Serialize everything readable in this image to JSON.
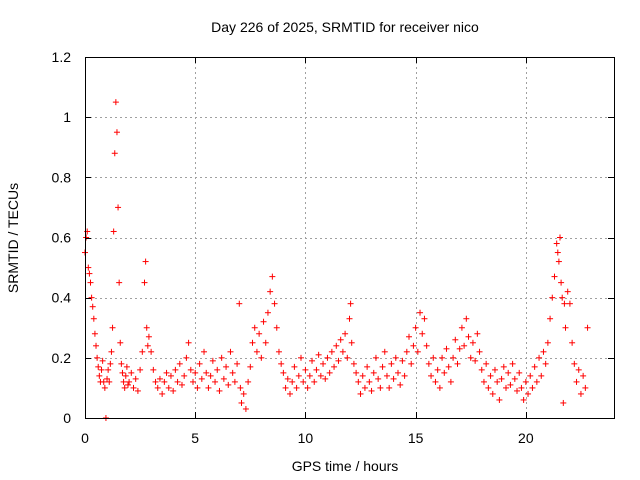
{
  "chart_data": {
    "type": "scatter",
    "title": "Day 226 of 2025, SRMTID for receiver nico",
    "xlabel": "GPS time / hours",
    "ylabel": "SRMTID / TECUs",
    "xlim": [
      0,
      24
    ],
    "ylim": [
      0,
      1.2
    ],
    "x_ticks": [
      {
        "value": 0,
        "label": "0"
      },
      {
        "value": 5,
        "label": "5"
      },
      {
        "value": 10,
        "label": "10"
      },
      {
        "value": 15,
        "label": "15"
      },
      {
        "value": 20,
        "label": "20"
      }
    ],
    "y_ticks": [
      {
        "value": 0,
        "label": "0"
      },
      {
        "value": 0.2,
        "label": "0.2"
      },
      {
        "value": 0.4,
        "label": "0.4"
      },
      {
        "value": 0.6,
        "label": "0.6"
      },
      {
        "value": 0.8,
        "label": "0.8"
      },
      {
        "value": 1.0,
        "label": "1"
      },
      {
        "value": 1.2,
        "label": "1.2"
      }
    ],
    "grid": true,
    "marker": "+",
    "marker_color": "#ff0000",
    "series": [
      {
        "name": "SRMTID",
        "points": [
          [
            0.0,
            0.55
          ],
          [
            0.05,
            0.6
          ],
          [
            0.1,
            0.62
          ],
          [
            0.15,
            0.5
          ],
          [
            0.2,
            0.48
          ],
          [
            0.25,
            0.45
          ],
          [
            0.3,
            0.4
          ],
          [
            0.35,
            0.37
          ],
          [
            0.4,
            0.33
          ],
          [
            0.45,
            0.28
          ],
          [
            0.5,
            0.24
          ],
          [
            0.55,
            0.2
          ],
          [
            0.6,
            0.17
          ],
          [
            0.65,
            0.14
          ],
          [
            0.7,
            0.12
          ],
          [
            0.75,
            0.16
          ],
          [
            0.8,
            0.19
          ],
          [
            0.85,
            0.12
          ],
          [
            0.9,
            0.1
          ],
          [
            0.95,
            0.0
          ],
          [
            1.0,
            0.13
          ],
          [
            1.05,
            0.16
          ],
          [
            1.1,
            0.12
          ],
          [
            1.15,
            0.18
          ],
          [
            1.2,
            0.22
          ],
          [
            1.25,
            0.3
          ],
          [
            1.3,
            0.62
          ],
          [
            1.35,
            0.88
          ],
          [
            1.4,
            1.05
          ],
          [
            1.45,
            0.95
          ],
          [
            1.5,
            0.7
          ],
          [
            1.55,
            0.45
          ],
          [
            1.6,
            0.25
          ],
          [
            1.65,
            0.18
          ],
          [
            1.7,
            0.15
          ],
          [
            1.75,
            0.12
          ],
          [
            1.8,
            0.1
          ],
          [
            1.85,
            0.14
          ],
          [
            1.9,
            0.17
          ],
          [
            1.95,
            0.11
          ],
          [
            2.0,
            0.12
          ],
          [
            2.1,
            0.15
          ],
          [
            2.2,
            0.1
          ],
          [
            2.3,
            0.13
          ],
          [
            2.4,
            0.09
          ],
          [
            2.5,
            0.16
          ],
          [
            2.6,
            0.22
          ],
          [
            2.7,
            0.45
          ],
          [
            2.75,
            0.52
          ],
          [
            2.8,
            0.3
          ],
          [
            2.85,
            0.24
          ],
          [
            2.9,
            0.27
          ],
          [
            3.0,
            0.22
          ],
          [
            3.1,
            0.16
          ],
          [
            3.2,
            0.12
          ],
          [
            3.3,
            0.1
          ],
          [
            3.4,
            0.13
          ],
          [
            3.5,
            0.08
          ],
          [
            3.6,
            0.12
          ],
          [
            3.7,
            0.15
          ],
          [
            3.8,
            0.1
          ],
          [
            3.9,
            0.14
          ],
          [
            4.0,
            0.09
          ],
          [
            4.1,
            0.16
          ],
          [
            4.2,
            0.12
          ],
          [
            4.3,
            0.18
          ],
          [
            4.4,
            0.11
          ],
          [
            4.5,
            0.14
          ],
          [
            4.6,
            0.2
          ],
          [
            4.7,
            0.25
          ],
          [
            4.8,
            0.16
          ],
          [
            4.9,
            0.12
          ],
          [
            5.0,
            0.15
          ],
          [
            5.1,
            0.1
          ],
          [
            5.2,
            0.18
          ],
          [
            5.3,
            0.13
          ],
          [
            5.4,
            0.22
          ],
          [
            5.5,
            0.15
          ],
          [
            5.6,
            0.1
          ],
          [
            5.7,
            0.14
          ],
          [
            5.8,
            0.19
          ],
          [
            5.9,
            0.12
          ],
          [
            6.0,
            0.16
          ],
          [
            6.1,
            0.09
          ],
          [
            6.2,
            0.2
          ],
          [
            6.3,
            0.13
          ],
          [
            6.4,
            0.17
          ],
          [
            6.5,
            0.11
          ],
          [
            6.6,
            0.22
          ],
          [
            6.7,
            0.15
          ],
          [
            6.8,
            0.12
          ],
          [
            6.9,
            0.18
          ],
          [
            7.0,
            0.38
          ],
          [
            7.05,
            0.1
          ],
          [
            7.1,
            0.05
          ],
          [
            7.2,
            0.08
          ],
          [
            7.3,
            0.03
          ],
          [
            7.4,
            0.12
          ],
          [
            7.5,
            0.17
          ],
          [
            7.6,
            0.25
          ],
          [
            7.7,
            0.3
          ],
          [
            7.8,
            0.22
          ],
          [
            7.9,
            0.28
          ],
          [
            8.0,
            0.2
          ],
          [
            8.1,
            0.32
          ],
          [
            8.2,
            0.25
          ],
          [
            8.3,
            0.35
          ],
          [
            8.4,
            0.42
          ],
          [
            8.5,
            0.47
          ],
          [
            8.6,
            0.38
          ],
          [
            8.7,
            0.3
          ],
          [
            8.8,
            0.22
          ],
          [
            8.9,
            0.18
          ],
          [
            9.0,
            0.15
          ],
          [
            9.1,
            0.1
          ],
          [
            9.2,
            0.13
          ],
          [
            9.3,
            0.08
          ],
          [
            9.4,
            0.12
          ],
          [
            9.5,
            0.17
          ],
          [
            9.6,
            0.1
          ],
          [
            9.7,
            0.14
          ],
          [
            9.8,
            0.2
          ],
          [
            9.9,
            0.12
          ],
          [
            10.0,
            0.16
          ],
          [
            10.1,
            0.1
          ],
          [
            10.2,
            0.14
          ],
          [
            10.3,
            0.19
          ],
          [
            10.4,
            0.12
          ],
          [
            10.5,
            0.16
          ],
          [
            10.6,
            0.21
          ],
          [
            10.7,
            0.14
          ],
          [
            10.8,
            0.18
          ],
          [
            10.9,
            0.13
          ],
          [
            11.0,
            0.2
          ],
          [
            11.1,
            0.15
          ],
          [
            11.2,
            0.22
          ],
          [
            11.3,
            0.17
          ],
          [
            11.4,
            0.24
          ],
          [
            11.5,
            0.19
          ],
          [
            11.6,
            0.26
          ],
          [
            11.7,
            0.22
          ],
          [
            11.8,
            0.28
          ],
          [
            11.9,
            0.2
          ],
          [
            12.0,
            0.33
          ],
          [
            12.05,
            0.38
          ],
          [
            12.1,
            0.25
          ],
          [
            12.2,
            0.18
          ],
          [
            12.3,
            0.15
          ],
          [
            12.4,
            0.12
          ],
          [
            12.5,
            0.08
          ],
          [
            12.6,
            0.14
          ],
          [
            12.7,
            0.1
          ],
          [
            12.8,
            0.17
          ],
          [
            12.9,
            0.12
          ],
          [
            13.0,
            0.09
          ],
          [
            13.1,
            0.15
          ],
          [
            13.2,
            0.2
          ],
          [
            13.3,
            0.13
          ],
          [
            13.4,
            0.1
          ],
          [
            13.5,
            0.17
          ],
          [
            13.6,
            0.22
          ],
          [
            13.7,
            0.14
          ],
          [
            13.8,
            0.1
          ],
          [
            13.9,
            0.18
          ],
          [
            14.0,
            0.13
          ],
          [
            14.1,
            0.2
          ],
          [
            14.2,
            0.15
          ],
          [
            14.3,
            0.11
          ],
          [
            14.4,
            0.19
          ],
          [
            14.5,
            0.14
          ],
          [
            14.6,
            0.22
          ],
          [
            14.7,
            0.27
          ],
          [
            14.8,
            0.18
          ],
          [
            14.9,
            0.24
          ],
          [
            15.0,
            0.3
          ],
          [
            15.1,
            0.22
          ],
          [
            15.2,
            0.35
          ],
          [
            15.3,
            0.28
          ],
          [
            15.4,
            0.33
          ],
          [
            15.5,
            0.24
          ],
          [
            15.6,
            0.18
          ],
          [
            15.7,
            0.14
          ],
          [
            15.8,
            0.2
          ],
          [
            15.9,
            0.12
          ],
          [
            16.0,
            0.16
          ],
          [
            16.1,
            0.1
          ],
          [
            16.2,
            0.2
          ],
          [
            16.3,
            0.15
          ],
          [
            16.4,
            0.23
          ],
          [
            16.5,
            0.17
          ],
          [
            16.6,
            0.12
          ],
          [
            16.7,
            0.2
          ],
          [
            16.8,
            0.26
          ],
          [
            16.9,
            0.18
          ],
          [
            17.0,
            0.23
          ],
          [
            17.1,
            0.3
          ],
          [
            17.2,
            0.24
          ],
          [
            17.3,
            0.33
          ],
          [
            17.4,
            0.27
          ],
          [
            17.5,
            0.2
          ],
          [
            17.6,
            0.25
          ],
          [
            17.7,
            0.19
          ],
          [
            17.8,
            0.28
          ],
          [
            17.9,
            0.22
          ],
          [
            18.0,
            0.16
          ],
          [
            18.1,
            0.12
          ],
          [
            18.2,
            0.18
          ],
          [
            18.3,
            0.1
          ],
          [
            18.4,
            0.14
          ],
          [
            18.5,
            0.08
          ],
          [
            18.6,
            0.16
          ],
          [
            18.7,
            0.12
          ],
          [
            18.8,
            0.06
          ],
          [
            18.9,
            0.13
          ],
          [
            19.0,
            0.17
          ],
          [
            19.1,
            0.1
          ],
          [
            19.2,
            0.15
          ],
          [
            19.3,
            0.11
          ],
          [
            19.4,
            0.18
          ],
          [
            19.5,
            0.13
          ],
          [
            19.6,
            0.09
          ],
          [
            19.7,
            0.15
          ],
          [
            19.8,
            0.1
          ],
          [
            19.9,
            0.06
          ],
          [
            20.0,
            0.12
          ],
          [
            20.1,
            0.08
          ],
          [
            20.2,
            0.14
          ],
          [
            20.3,
            0.1
          ],
          [
            20.4,
            0.17
          ],
          [
            20.5,
            0.12
          ],
          [
            20.6,
            0.2
          ],
          [
            20.7,
            0.14
          ],
          [
            20.8,
            0.22
          ],
          [
            20.9,
            0.18
          ],
          [
            21.0,
            0.25
          ],
          [
            21.1,
            0.33
          ],
          [
            21.2,
            0.4
          ],
          [
            21.3,
            0.47
          ],
          [
            21.4,
            0.58
          ],
          [
            21.45,
            0.55
          ],
          [
            21.5,
            0.52
          ],
          [
            21.55,
            0.6
          ],
          [
            21.6,
            0.45
          ],
          [
            21.65,
            0.4
          ],
          [
            21.7,
            0.05
          ],
          [
            21.75,
            0.38
          ],
          [
            21.8,
            0.3
          ],
          [
            21.9,
            0.42
          ],
          [
            22.0,
            0.38
          ],
          [
            22.1,
            0.25
          ],
          [
            22.2,
            0.18
          ],
          [
            22.3,
            0.12
          ],
          [
            22.4,
            0.16
          ],
          [
            22.5,
            0.08
          ],
          [
            22.6,
            0.14
          ],
          [
            22.7,
            0.1
          ],
          [
            22.8,
            0.3
          ]
        ]
      }
    ]
  }
}
